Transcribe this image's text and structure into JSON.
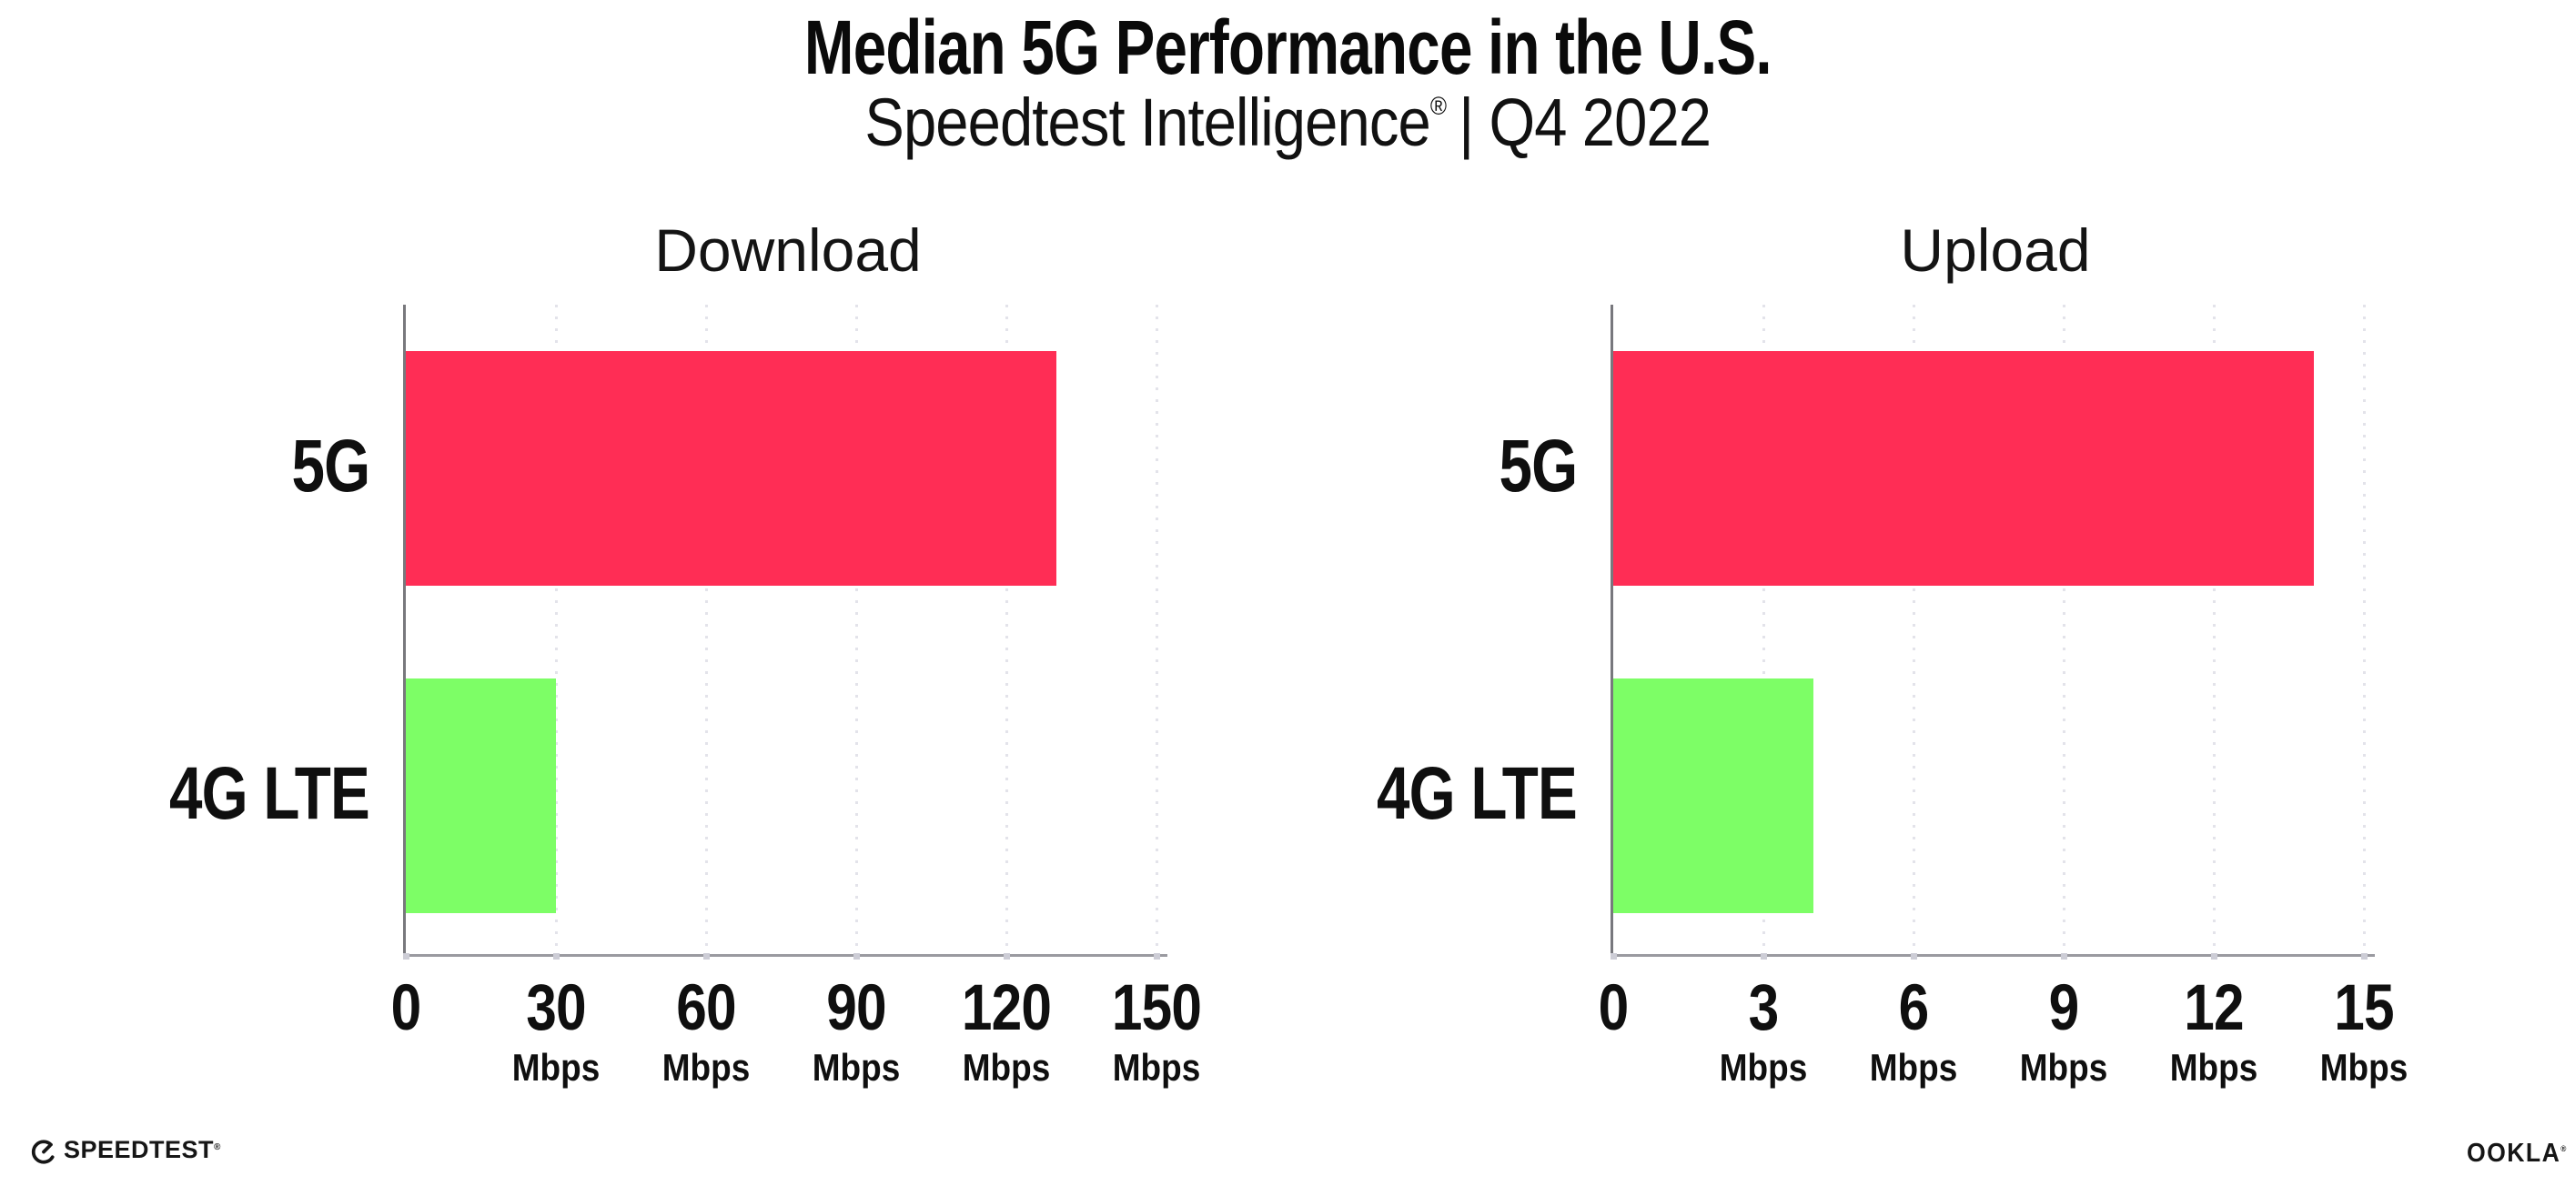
{
  "header": {
    "title": "Median 5G Performance in the U.S.",
    "subtitle": {
      "brand": "Speedtest Intelligence",
      "registered_mark": "®",
      "separator_and_period": "| Q4 2022"
    }
  },
  "chart_data": [
    {
      "type": "bar",
      "orientation": "horizontal",
      "title": "Download",
      "categories": [
        "5G",
        "4G LTE"
      ],
      "values": [
        130,
        30
      ],
      "unit": "Mbps",
      "xlim": [
        0,
        150
      ],
      "xticks": [
        0,
        30,
        60,
        90,
        120,
        150
      ],
      "series_colors": [
        "#FF2D55",
        "#7DFE66"
      ],
      "grid": "vertical-dotted",
      "value_labels_shown": false,
      "legend": "none"
    },
    {
      "type": "bar",
      "orientation": "horizontal",
      "title": "Upload",
      "categories": [
        "5G",
        "4G LTE"
      ],
      "values": [
        14,
        4
      ],
      "unit": "Mbps",
      "xlim": [
        0,
        15
      ],
      "xticks": [
        0,
        3,
        6,
        9,
        12,
        15
      ],
      "series_colors": [
        "#FF2D55",
        "#7DFE66"
      ],
      "grid": "vertical-dotted",
      "value_labels_shown": false,
      "legend": "none"
    }
  ],
  "footer": {
    "speedtest_logo_text": "SPEEDTEST",
    "speedtest_trademark": "®",
    "ookla_logo_text": "OOKLA",
    "ookla_trademark": "®"
  },
  "colors": {
    "bar_5g": "#FF2D55",
    "bar_4g_lte": "#7DFE66",
    "y_axis": "#78787d",
    "x_axis": "#9a9aa0",
    "gridline": "#e3e3ea",
    "text": "#0f0f0f"
  }
}
